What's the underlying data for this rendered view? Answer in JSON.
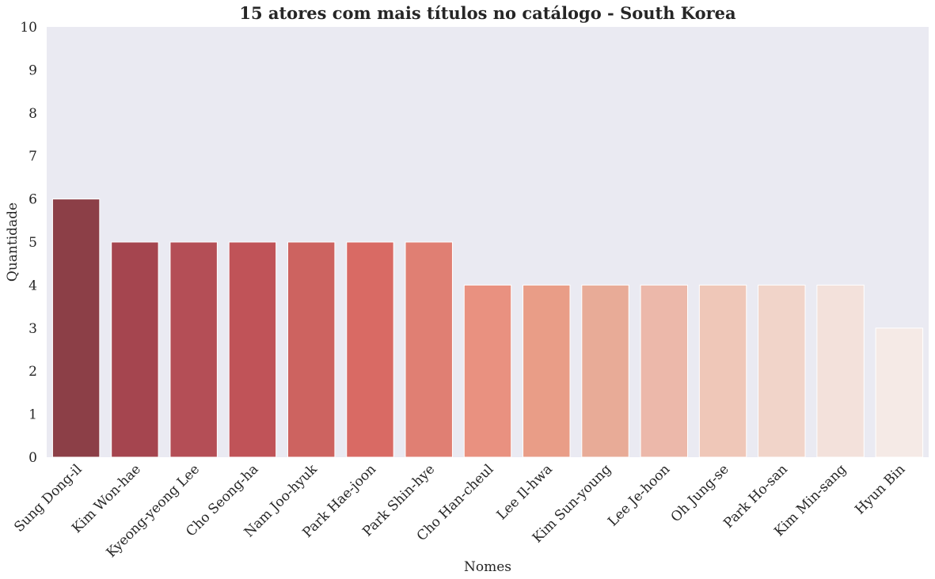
{
  "chart_data": {
    "type": "bar",
    "title": "15 atores com mais títulos no catálogo - South Korea",
    "xlabel": "Nomes",
    "ylabel": "Quantidade",
    "ylim": [
      0,
      10
    ],
    "yticks": [
      "0",
      "1",
      "2",
      "3",
      "4",
      "5",
      "6",
      "7",
      "8",
      "9",
      "10"
    ],
    "grid": false,
    "categories": [
      "Sung Dong-il",
      "Kim Won-hae",
      "Kyeong-yeong Lee",
      "Cho Seong-ha",
      "Nam Joo-hyuk",
      "Park Hae-joon",
      "Park Shin-hye",
      "Cho Han-cheul",
      "Lee Il-hwa",
      "Kim Sun-young",
      "Lee Je-hoon",
      "Oh Jung-se",
      "Park Ho-san",
      "Kim Min-sang",
      "Hyun Bin"
    ],
    "values": [
      6,
      5,
      5,
      5,
      5,
      5,
      5,
      4,
      4,
      4,
      4,
      4,
      4,
      4,
      3
    ],
    "colors": [
      "#8c3f47",
      "#a5454f",
      "#b44e56",
      "#c05358",
      "#cd6360",
      "#d96a64",
      "#e07f73",
      "#e99180",
      "#e99d87",
      "#e8ab97",
      "#ecb8aa",
      "#efc7b8",
      "#f1d4c9",
      "#f3e1db",
      "#f5eae6"
    ],
    "background": "#eaeaf2"
  }
}
